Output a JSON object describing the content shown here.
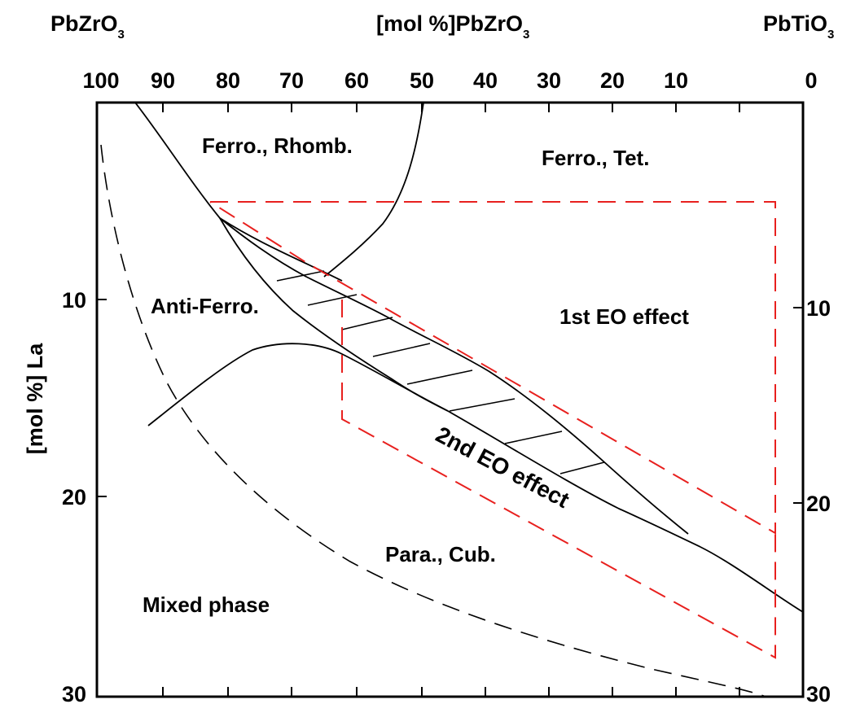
{
  "corners": {
    "left_compound": "PbZrO",
    "left_compound_sub": "3",
    "right_compound": "PbTiO",
    "right_compound_sub": "3"
  },
  "top_axis": {
    "label": "[mol %]PbZrO",
    "label_sub": "3",
    "ticks": [
      "100",
      "90",
      "80",
      "70",
      "60",
      "50",
      "40",
      "30",
      "20",
      "10",
      "0"
    ]
  },
  "left_axis": {
    "label": "[mol %] La",
    "ticks": [
      "10",
      "20",
      "30"
    ]
  },
  "right_axis": {
    "ticks": [
      "10",
      "20",
      "30"
    ]
  },
  "regions": {
    "ferro_rhomb": "Ferro., Rhomb.",
    "ferro_tet": "Ferro., Tet.",
    "anti_ferro": "Anti-Ferro.",
    "first_eo": "1st EO effect",
    "second_eo": "2nd EO effect",
    "para_cub": "Para., Cub.",
    "mixed_phase": "Mixed phase"
  },
  "colors": {
    "boundary_lines": "#000000",
    "eo_regions": "#e8201e"
  }
}
